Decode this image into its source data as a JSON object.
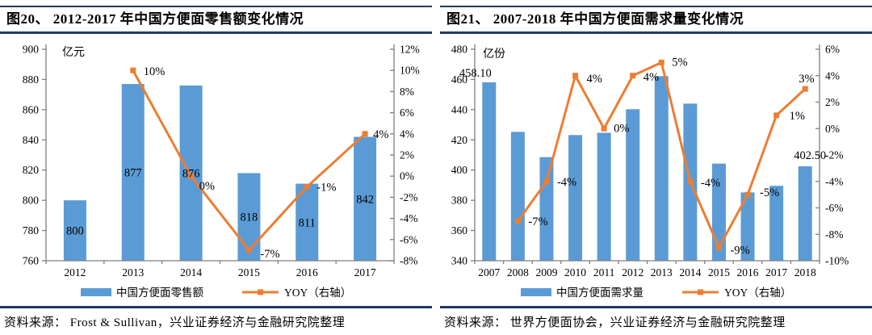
{
  "colors": {
    "bar": "#5b9bd5",
    "line": "#ed7d31",
    "rule": "#1f3864",
    "axis": "#7f7f7f",
    "text": "#000000"
  },
  "chart_data": [
    {
      "type": "bar+line",
      "title": "图20、 2012-2017 年中国方便面零售额变化情况",
      "unit_label": "亿元",
      "categories": [
        "2012",
        "2013",
        "2014",
        "2015",
        "2016",
        "2017"
      ],
      "series": [
        {
          "name": "中国方便面零售额",
          "type": "bar",
          "axis": "left",
          "values": [
            800,
            877,
            876,
            818,
            811,
            842
          ],
          "value_labels": [
            "800",
            "877",
            "876",
            "818",
            "811",
            "842"
          ]
        },
        {
          "name": "YOY（右轴）",
          "type": "line",
          "axis": "right",
          "values": [
            null,
            10,
            0,
            -7,
            -1,
            4
          ],
          "value_labels": [
            null,
            "10%",
            "0%",
            "-7%",
            "-1%",
            "4%"
          ]
        }
      ],
      "left_axis": {
        "min": 760,
        "max": 900,
        "step": 20,
        "ticks": [
          "900",
          "880",
          "860",
          "840",
          "820",
          "800",
          "780",
          "760"
        ]
      },
      "right_axis": {
        "min": -8,
        "max": 12,
        "step": 2,
        "ticks": [
          "12%",
          "10%",
          "8%",
          "6%",
          "4%",
          "2%",
          "0%",
          "-2%",
          "-4%",
          "-6%",
          "-8%"
        ]
      },
      "legend": [
        "中国方便面零售额",
        "YOY（右轴）"
      ],
      "grid": "off",
      "source": "资料来源： Frost & Sullivan，兴业证券经济与金融研究院整理"
    },
    {
      "type": "bar+line",
      "title": "图21、 2007-2018 年中国方便面需求量变化情况",
      "unit_label": "亿份",
      "categories": [
        "2007",
        "2008",
        "2009",
        "2010",
        "2011",
        "2012",
        "2013",
        "2014",
        "2015",
        "2016",
        "2017",
        "2018"
      ],
      "series": [
        {
          "name": "中国方便面需求量",
          "type": "bar",
          "axis": "left",
          "values": [
            458.1,
            425.3,
            408.6,
            423.2,
            424.7,
            440.3,
            462.2,
            444.0,
            404.3,
            385.2,
            389.6,
            402.5
          ],
          "value_labels": [
            "458.10",
            null,
            null,
            null,
            null,
            null,
            null,
            null,
            null,
            null,
            null,
            "402.50"
          ]
        },
        {
          "name": "YOY（右轴）",
          "type": "line",
          "axis": "right",
          "values": [
            null,
            -7,
            -4,
            4,
            0,
            4,
            5,
            -4,
            -9,
            -5,
            1,
            3
          ],
          "value_labels": [
            null,
            "-7%",
            "-4%",
            "4%",
            "0%",
            "4%",
            "5%",
            "-4%",
            "-9%",
            "-5%",
            "1%",
            "3%"
          ]
        }
      ],
      "left_axis": {
        "min": 340,
        "max": 480,
        "step": 20,
        "ticks": [
          "480",
          "460",
          "440",
          "420",
          "400",
          "380",
          "360",
          "340"
        ]
      },
      "right_axis": {
        "min": -10,
        "max": 6,
        "step": 2,
        "ticks": [
          "6%",
          "4%",
          "2%",
          "0%",
          "-2%",
          "-4%",
          "-6%",
          "-8%",
          "-10%"
        ]
      },
      "legend": [
        "中国方便面需求量",
        "YOY（右轴）"
      ],
      "grid": "off",
      "source": "资料来源： 世界方便面协会，兴业证券经济与金融研究院整理"
    }
  ]
}
